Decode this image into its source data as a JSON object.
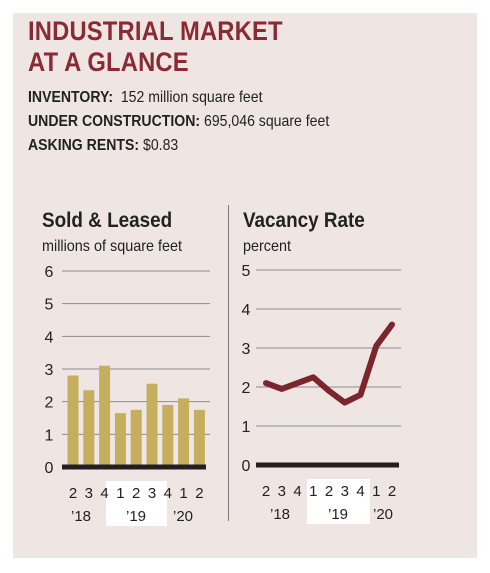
{
  "title_lines": [
    "INDUSTRIAL MARKET",
    "AT A GLANCE"
  ],
  "facts": [
    {
      "label": "INVENTORY:",
      "value": "152 million square feet"
    },
    {
      "label": "UNDER CONSTRUCTION:",
      "value": "695,046 square feet"
    },
    {
      "label": "ASKING RENTS:",
      "value": "$0.83"
    }
  ],
  "colors": {
    "title": "#8a2a32",
    "bars": "#c5ae5e",
    "line": "#7a262c",
    "axis": "#231f20",
    "background": "#efe6e3",
    "highlight": "#ffffff"
  },
  "chart_data": [
    {
      "type": "bar",
      "title": "Sold & Leased",
      "subtitle": "millions of square feet",
      "categories": [
        "2",
        "3",
        "4",
        "1",
        "2",
        "3",
        "4",
        "1",
        "2"
      ],
      "year_labels": [
        "’18",
        "’19",
        "’20"
      ],
      "values": [
        2.8,
        2.35,
        3.1,
        1.65,
        1.75,
        2.55,
        1.9,
        2.1,
        1.75
      ],
      "ylim": [
        0,
        6
      ],
      "yticks": [
        "0",
        "1",
        "2",
        "3",
        "4",
        "5",
        "6"
      ],
      "grid": true
    },
    {
      "type": "line",
      "title": "Vacancy Rate",
      "subtitle": "percent",
      "categories": [
        "2",
        "3",
        "4",
        "1",
        "2",
        "3",
        "4",
        "1",
        "2"
      ],
      "year_labels": [
        "’18",
        "’19",
        "’20"
      ],
      "values": [
        2.1,
        1.95,
        2.1,
        2.25,
        1.9,
        1.6,
        1.8,
        3.05,
        3.6
      ],
      "ylim": [
        0,
        5
      ],
      "yticks": [
        "0",
        "1",
        "2",
        "3",
        "4",
        "5"
      ],
      "grid": true
    }
  ]
}
